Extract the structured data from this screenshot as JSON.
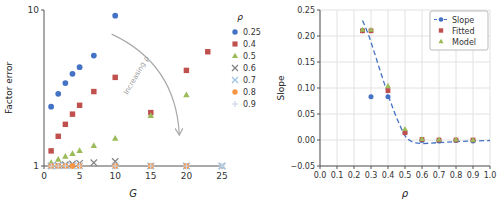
{
  "chart_data": [
    {
      "type": "scatter",
      "xlabel": "G",
      "ylabel": "Factor error",
      "log": "y",
      "xlim": [
        0,
        25
      ],
      "ylim": [
        1,
        10
      ],
      "xticks": [
        0,
        5,
        10,
        15,
        20,
        25
      ],
      "yticks": [
        1,
        10
      ],
      "grid": false,
      "legend": "right",
      "legend_title": "ρ",
      "series": [
        {
          "name": "0.25",
          "color": "#4472c4",
          "marker": "circle",
          "x": [
            1,
            2,
            3,
            4,
            5,
            7,
            10
          ],
          "values": [
            2.4,
            2.9,
            3.4,
            3.9,
            4.3,
            5.1,
            9.2
          ]
        },
        {
          "name": "0.4",
          "color": "#c0504d",
          "marker": "square",
          "x": [
            1,
            2,
            3,
            4,
            5,
            7,
            10,
            15,
            20,
            23
          ],
          "values": [
            1.25,
            1.55,
            1.85,
            2.15,
            2.45,
            3.0,
            3.7,
            2.2,
            4.1,
            5.4
          ]
        },
        {
          "name": "0.5",
          "color": "#9bbb59",
          "marker": "triangle",
          "x": [
            1,
            2,
            3,
            4,
            5,
            7,
            10,
            15,
            20
          ],
          "values": [
            1.05,
            1.1,
            1.15,
            1.2,
            1.25,
            1.35,
            1.5,
            2.1,
            2.85
          ]
        },
        {
          "name": "0.6",
          "color": "#808080",
          "marker": "x",
          "x": [
            1,
            2,
            3,
            4,
            5,
            7,
            10,
            15,
            20,
            25
          ],
          "values": [
            1.0,
            1.01,
            1.02,
            1.03,
            1.04,
            1.05,
            1.07,
            1.0,
            1.0,
            1.0
          ]
        },
        {
          "name": "0.7",
          "color": "#9dc3e6",
          "marker": "x",
          "x": [
            1,
            2,
            3,
            4,
            5,
            10,
            15,
            20,
            25
          ],
          "values": [
            1.0,
            1.0,
            1.0,
            1.0,
            1.0,
            1.0,
            1.0,
            1.0,
            1.0
          ]
        },
        {
          "name": "0.8",
          "color": "#f79646",
          "marker": "circle",
          "x": [
            1,
            2,
            3,
            4,
            5,
            10,
            15,
            20
          ],
          "values": [
            1.0,
            1.0,
            1.0,
            1.0,
            1.0,
            1.0,
            1.0,
            1.0
          ]
        },
        {
          "name": "0.9",
          "color": "#c8d4e8",
          "marker": "plus",
          "x": [
            1,
            2,
            3,
            5,
            10,
            15,
            20,
            25
          ],
          "values": [
            1.0,
            1.0,
            1.0,
            1.0,
            1.0,
            1.0,
            1.0,
            1.0
          ]
        }
      ],
      "annotations": [
        {
          "text": "Increasing ρ",
          "x": 13,
          "y": 3.8,
          "arrow_from": [
            9.5,
            7.0
          ],
          "arrow_to": [
            19,
            1.6
          ]
        }
      ]
    },
    {
      "type": "scatter",
      "xlabel": "ρ",
      "ylabel": "Slope",
      "xlim": [
        0,
        1.0
      ],
      "ylim": [
        -0.05,
        0.25
      ],
      "xticks": [
        {
          "value": 0,
          "label": "0.0"
        },
        0.1,
        0.2,
        0.3,
        0.4,
        0.5,
        0.6,
        0.7,
        0.8,
        0.9,
        {
          "value": 1.0,
          "label": "1.0"
        }
      ],
      "yticks": [
        {
          "value": -0.05,
          "label": "−0.05"
        },
        {
          "value": 0,
          "label": "0.00"
        },
        0.05,
        {
          "value": 0.1,
          "label": "0.10"
        },
        0.15,
        {
          "value": 0.2,
          "label": "0.20"
        },
        0.25
      ],
      "grid": true,
      "legend": "upper right",
      "series": [
        {
          "type": "line",
          "line_style": "dashed",
          "color": "#4472c4",
          "x": [
            0.25,
            0.27,
            0.29,
            0.31,
            0.33,
            0.35,
            0.37,
            0.39,
            0.41,
            0.43,
            0.45,
            0.47,
            0.49,
            0.51,
            0.55,
            0.6,
            0.7,
            0.8,
            0.9,
            1.0
          ],
          "values": [
            0.23,
            0.215,
            0.198,
            0.178,
            0.158,
            0.137,
            0.117,
            0.097,
            0.078,
            0.06,
            0.043,
            0.028,
            0.014,
            0.003,
            -0.005,
            -0.007,
            -0.005,
            -0.003,
            -0.002,
            -0.001
          ]
        },
        {
          "name": "Slope",
          "color": "#4472c4",
          "marker": "circle",
          "x": [
            0.25,
            0.3,
            0.4,
            0.5,
            0.6,
            0.7,
            0.8,
            0.9
          ],
          "values": [
            0.21,
            0.083,
            0.083,
            0.014,
            -0.001,
            -0.002,
            -0.001,
            -0.002
          ]
        },
        {
          "name": "Fitted",
          "color": "#c0504d",
          "marker": "square",
          "x": [
            0.25,
            0.3,
            0.4,
            0.5,
            0.6,
            0.7,
            0.8,
            0.9
          ],
          "values": [
            0.21,
            0.21,
            0.095,
            0.014,
            0.001,
            0.0,
            0.0,
            0.0
          ]
        },
        {
          "name": "Model",
          "color": "#9bbb59",
          "marker": "triangle",
          "x": [
            0.25,
            0.3,
            0.4,
            0.5,
            0.6,
            0.7,
            0.8,
            0.9
          ],
          "values": [
            0.212,
            0.212,
            0.104,
            0.021,
            0.002,
            0.001,
            0.001,
            0.0
          ]
        }
      ]
    }
  ]
}
